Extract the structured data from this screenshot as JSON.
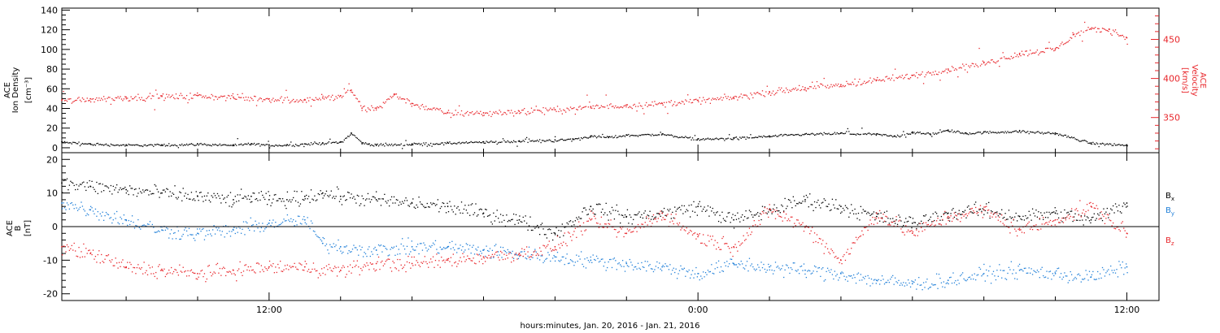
{
  "colors": {
    "black": "#000000",
    "red": "#e8262b",
    "blue": "#1f7fd8"
  },
  "time_axis": {
    "label": "hours:minutes, Jan. 20, 2016 - Jan. 21, 2016",
    "tick_labels": [
      {
        "hour": 12,
        "text": "12:00"
      },
      {
        "hour": 24,
        "text": "0:00"
      },
      {
        "hour": 36,
        "text": "12:00"
      }
    ],
    "range_hours": [
      6.2,
      36.9
    ]
  },
  "chart_data": [
    {
      "type": "scatter",
      "ylabel_left": [
        "ACE",
        "Ion Density",
        "[cm⁻³]"
      ],
      "ylabel_right": [
        "ACE",
        "Velocity",
        "[km/s]"
      ],
      "yticks_left": [
        0,
        20,
        40,
        60,
        80,
        100,
        120,
        140
      ],
      "yticks_left_labels": [
        "0",
        "20",
        "40",
        "60",
        "80",
        "100",
        "120",
        "140"
      ],
      "ylim_left": [
        -5,
        142
      ],
      "yticks_right": [
        350,
        400,
        450
      ],
      "yticks_right_labels": [
        "350",
        "400",
        "450"
      ],
      "ylim_right": [
        305,
        490
      ],
      "series": [
        {
          "color": "black",
          "axis": "left",
          "x": [
            6.2,
            7.0,
            8.0,
            9.0,
            10.0,
            11.0,
            11.5,
            12.0,
            12.5,
            13.0,
            13.5,
            14.0,
            14.3,
            14.6,
            14.8,
            15.0,
            16.0,
            17.0,
            18.0,
            19.0,
            20.0,
            20.5,
            21.0,
            21.5,
            22.0,
            23.0,
            24.0,
            25.0,
            26.0,
            27.0,
            28.0,
            29.0,
            29.5,
            30.0,
            30.5,
            31.0,
            31.5,
            32.0,
            33.0,
            34.0,
            35.0,
            36.0
          ],
          "values": [
            6,
            4,
            3,
            3,
            4,
            3,
            4,
            3,
            3,
            4,
            5,
            6,
            15,
            5,
            4,
            3,
            4,
            5,
            6,
            7,
            8,
            9,
            12,
            11,
            13,
            14,
            9,
            10,
            12,
            14,
            15,
            14,
            12,
            16,
            14,
            18,
            15,
            16,
            17,
            15,
            5,
            3
          ]
        },
        {
          "color": "red",
          "axis": "right",
          "x": [
            6.2,
            7.0,
            8.0,
            9.0,
            10.0,
            11.0,
            12.0,
            13.0,
            13.5,
            14.0,
            14.3,
            14.6,
            15.0,
            15.5,
            16.0,
            17.0,
            18.0,
            19.0,
            20.0,
            21.0,
            22.0,
            23.0,
            24.0,
            25.0,
            26.0,
            27.0,
            28.0,
            29.0,
            30.0,
            31.0,
            32.0,
            33.0,
            34.0,
            34.5,
            35.0,
            35.5,
            36.0
          ],
          "values": [
            372,
            374,
            376,
            377,
            378,
            376,
            374,
            373,
            375,
            378,
            385,
            362,
            362,
            380,
            368,
            356,
            356,
            358,
            360,
            364,
            366,
            368,
            372,
            376,
            383,
            388,
            392,
            398,
            404,
            412,
            420,
            432,
            438,
            456,
            463,
            463,
            452
          ]
        }
      ]
    },
    {
      "type": "scatter",
      "ylabel_left": [
        "ACE",
        "B",
        "[nT]"
      ],
      "yticks_left": [
        -20,
        -10,
        0,
        10,
        20
      ],
      "yticks_left_labels": [
        "-20",
        "-10",
        "0",
        "10",
        "20"
      ],
      "ylim_left": [
        -22,
        22
      ],
      "zero_line": true,
      "series": [
        {
          "name": "Bx",
          "color": "black",
          "x": [
            6.2,
            7.0,
            8.0,
            9.0,
            10.0,
            11.0,
            11.5,
            12.0,
            12.5,
            13.0,
            13.5,
            14.0,
            15.0,
            16.0,
            17.0,
            18.0,
            19.0,
            20.0,
            21.0,
            22.0,
            23.0,
            24.0,
            25.0,
            26.0,
            27.0,
            28.0,
            29.0,
            30.0,
            31.0,
            32.0,
            33.0,
            34.0,
            35.0,
            36.0
          ],
          "values": [
            13,
            12,
            11,
            10,
            9,
            8,
            9,
            8,
            8,
            9,
            10,
            9,
            8,
            7,
            6,
            4,
            2,
            -2,
            6,
            3,
            4,
            6,
            2,
            5,
            8,
            6,
            3,
            1,
            4,
            5,
            3,
            4,
            2,
            7
          ]
        },
        {
          "name": "By",
          "color": "blue",
          "x": [
            6.2,
            7.0,
            8.0,
            9.0,
            10.0,
            11.0,
            12.0,
            13.0,
            13.5,
            14.0,
            15.0,
            16.0,
            17.0,
            18.0,
            19.0,
            20.0,
            21.0,
            22.0,
            23.0,
            24.0,
            25.0,
            26.0,
            27.0,
            28.0,
            29.0,
            30.0,
            31.0,
            32.0,
            33.0,
            34.0,
            35.0,
            36.0
          ],
          "values": [
            7,
            5,
            2,
            -1,
            -2,
            -1,
            1,
            2,
            -5,
            -6,
            -7,
            -6,
            -6,
            -7,
            -8,
            -9,
            -10,
            -11,
            -12,
            -14,
            -11,
            -12,
            -13,
            -14,
            -16,
            -17,
            -16,
            -14,
            -13,
            -14,
            -15,
            -12
          ]
        },
        {
          "name": "Bz",
          "color": "red",
          "x": [
            6.2,
            7.0,
            8.0,
            9.0,
            10.0,
            11.0,
            12.0,
            13.0,
            14.0,
            15.0,
            16.0,
            17.0,
            18.0,
            19.0,
            20.0,
            21.0,
            22.0,
            23.0,
            24.0,
            25.0,
            26.0,
            27.0,
            28.0,
            29.0,
            30.0,
            31.0,
            32.0,
            33.0,
            34.0,
            35.0,
            36.0
          ],
          "values": [
            -6,
            -8,
            -12,
            -13,
            -14,
            -13,
            -12,
            -12,
            -13,
            -11,
            -11,
            -10,
            -9,
            -8,
            -6,
            2,
            -2,
            4,
            -3,
            -6,
            5,
            0,
            -10,
            4,
            -2,
            3,
            5,
            -1,
            2,
            6,
            -2
          ]
        }
      ],
      "legend": [
        {
          "color": "black",
          "base": "B",
          "sub": "x"
        },
        {
          "color": "blue",
          "base": "B",
          "sub": "y"
        },
        {
          "color": "red",
          "base": "B",
          "sub": "z"
        }
      ]
    }
  ]
}
